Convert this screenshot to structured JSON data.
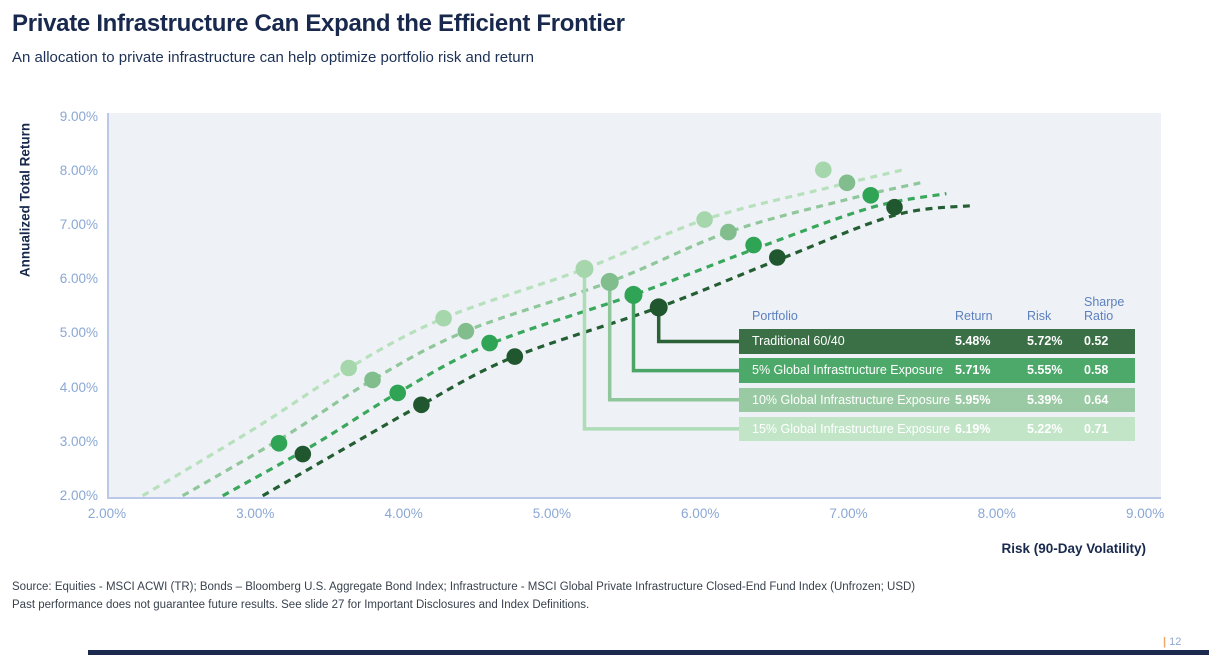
{
  "slide": {
    "title": "Private Infrastructure Can Expand the Efficient Frontier",
    "subtitle": "An allocation to private infrastructure can help optimize portfolio risk and return",
    "source_line1": "Source: Equities - MSCI ACWI (TR); Bonds – Bloomberg U.S. Aggregate Bond Index; Infrastructure - MSCI Global Private Infrastructure Closed-End Fund Index (Unfrozen; USD)",
    "source_line2": "Past performance does not guarantee future results. See slide 27 for Important Disclosures and Index Definitions.",
    "page_number": "12",
    "page_divider": "|"
  },
  "chart_data": {
    "type": "scatter",
    "title": "",
    "xlabel": "Risk (90-Day Volatility)",
    "ylabel": "Annualized Total Return",
    "xlim": [
      2,
      9
    ],
    "ylim": [
      2,
      9
    ],
    "grid": false,
    "x_ticks": [
      {
        "v": 2,
        "label": "2.00%"
      },
      {
        "v": 3,
        "label": "3.00%"
      },
      {
        "v": 4,
        "label": "4.00%"
      },
      {
        "v": 5,
        "label": "5.00%"
      },
      {
        "v": 6,
        "label": "6.00%"
      },
      {
        "v": 7,
        "label": "7.00%"
      },
      {
        "v": 8,
        "label": "8.00%"
      },
      {
        "v": 9,
        "label": "9.00%"
      }
    ],
    "y_ticks": [
      {
        "v": 9,
        "label": "9.00%"
      },
      {
        "v": 8,
        "label": "8.00%"
      },
      {
        "v": 7,
        "label": "7.00%"
      },
      {
        "v": 6,
        "label": "6.00%"
      },
      {
        "v": 5,
        "label": "5.00%"
      },
      {
        "v": 4,
        "label": "4.00%"
      },
      {
        "v": 3,
        "label": "3.00%"
      },
      {
        "v": 2,
        "label": "2.00%"
      }
    ],
    "series": [
      {
        "name": "15% Global Infrastructure Exposure",
        "dot_color": "#a6d7ac",
        "curve_color": "#b7e0bc",
        "connector_color": "#aedcb6",
        "row_color": "#c2e5c8",
        "marked_point": [
          5.22,
          6.19
        ],
        "points": [
          [
            3.63,
            4.36
          ],
          [
            4.27,
            5.28
          ],
          [
            5.22,
            6.19
          ],
          [
            6.03,
            7.1
          ],
          [
            6.83,
            8.02
          ]
        ],
        "curve": [
          [
            2.24,
            2.0
          ],
          [
            3.0,
            3.25
          ],
          [
            3.63,
            4.36
          ],
          [
            4.27,
            5.28
          ],
          [
            5.22,
            6.19
          ],
          [
            6.03,
            7.1
          ],
          [
            6.88,
            7.7
          ],
          [
            7.37,
            8.02
          ]
        ]
      },
      {
        "name": "10% Global Infrastructure Exposure",
        "dot_color": "#82bd8d",
        "curve_color": "#8fc79a",
        "connector_color": "#8fc79a",
        "row_color": "#9acaa3",
        "marked_point": [
          5.39,
          5.95
        ],
        "points": [
          [
            3.79,
            4.14
          ],
          [
            4.42,
            5.04
          ],
          [
            5.39,
            5.95
          ],
          [
            6.19,
            6.87
          ],
          [
            6.99,
            7.78
          ]
        ],
        "curve": [
          [
            2.51,
            2.0
          ],
          [
            3.2,
            3.1
          ],
          [
            3.79,
            4.14
          ],
          [
            4.42,
            5.04
          ],
          [
            5.39,
            5.95
          ],
          [
            6.19,
            6.87
          ],
          [
            7.0,
            7.48
          ],
          [
            7.5,
            7.79
          ]
        ]
      },
      {
        "name": "5% Global Infrastructure Exposure",
        "dot_color": "#2fa455",
        "curve_color": "#3aa85c",
        "connector_color": "#4aa567",
        "row_color": "#4ca96a",
        "marked_point": [
          5.55,
          5.71
        ],
        "points": [
          [
            3.16,
            2.97
          ],
          [
            3.96,
            3.9
          ],
          [
            4.58,
            4.82
          ],
          [
            5.55,
            5.71
          ],
          [
            6.36,
            6.63
          ],
          [
            7.15,
            7.55
          ]
        ],
        "curve": [
          [
            2.78,
            2.0
          ],
          [
            3.4,
            2.95
          ],
          [
            3.96,
            3.9
          ],
          [
            4.58,
            4.8
          ],
          [
            5.55,
            5.71
          ],
          [
            6.36,
            6.55
          ],
          [
            7.15,
            7.32
          ],
          [
            7.66,
            7.58
          ]
        ]
      },
      {
        "name": "Traditional 60/40",
        "dot_color": "#20572e",
        "curve_color": "#245e33",
        "connector_color": "#2a6238",
        "row_color": "#3b7046",
        "marked_point": [
          5.72,
          5.48
        ],
        "points": [
          [
            3.32,
            2.77
          ],
          [
            4.12,
            3.68
          ],
          [
            4.75,
            4.57
          ],
          [
            5.72,
            5.48
          ],
          [
            6.52,
            6.4
          ],
          [
            7.31,
            7.33
          ]
        ],
        "curve": [
          [
            3.05,
            2.0
          ],
          [
            3.65,
            2.95
          ],
          [
            4.12,
            3.68
          ],
          [
            4.73,
            4.55
          ],
          [
            5.72,
            5.48
          ],
          [
            6.52,
            6.35
          ],
          [
            7.31,
            7.18
          ],
          [
            7.83,
            7.36
          ]
        ]
      }
    ],
    "table": {
      "headers": [
        "Portfolio",
        "Return",
        "Risk",
        "Sharpe Ratio"
      ],
      "rows": [
        {
          "portfolio": "Traditional 60/40",
          "return": "5.48%",
          "risk": "5.72%",
          "sharpe": "0.52",
          "series_index": 3
        },
        {
          "portfolio": "5% Global Infrastructure Exposure",
          "return": "5.71%",
          "risk": "5.55%",
          "sharpe": "0.58",
          "series_index": 2
        },
        {
          "portfolio": "10% Global Infrastructure Exposure",
          "return": "5.95%",
          "risk": "5.39%",
          "sharpe": "0.64",
          "series_index": 1
        },
        {
          "portfolio": "15% Global Infrastructure Exposure",
          "return": "6.19%",
          "risk": "5.22%",
          "sharpe": "0.71",
          "series_index": 0
        }
      ]
    }
  }
}
